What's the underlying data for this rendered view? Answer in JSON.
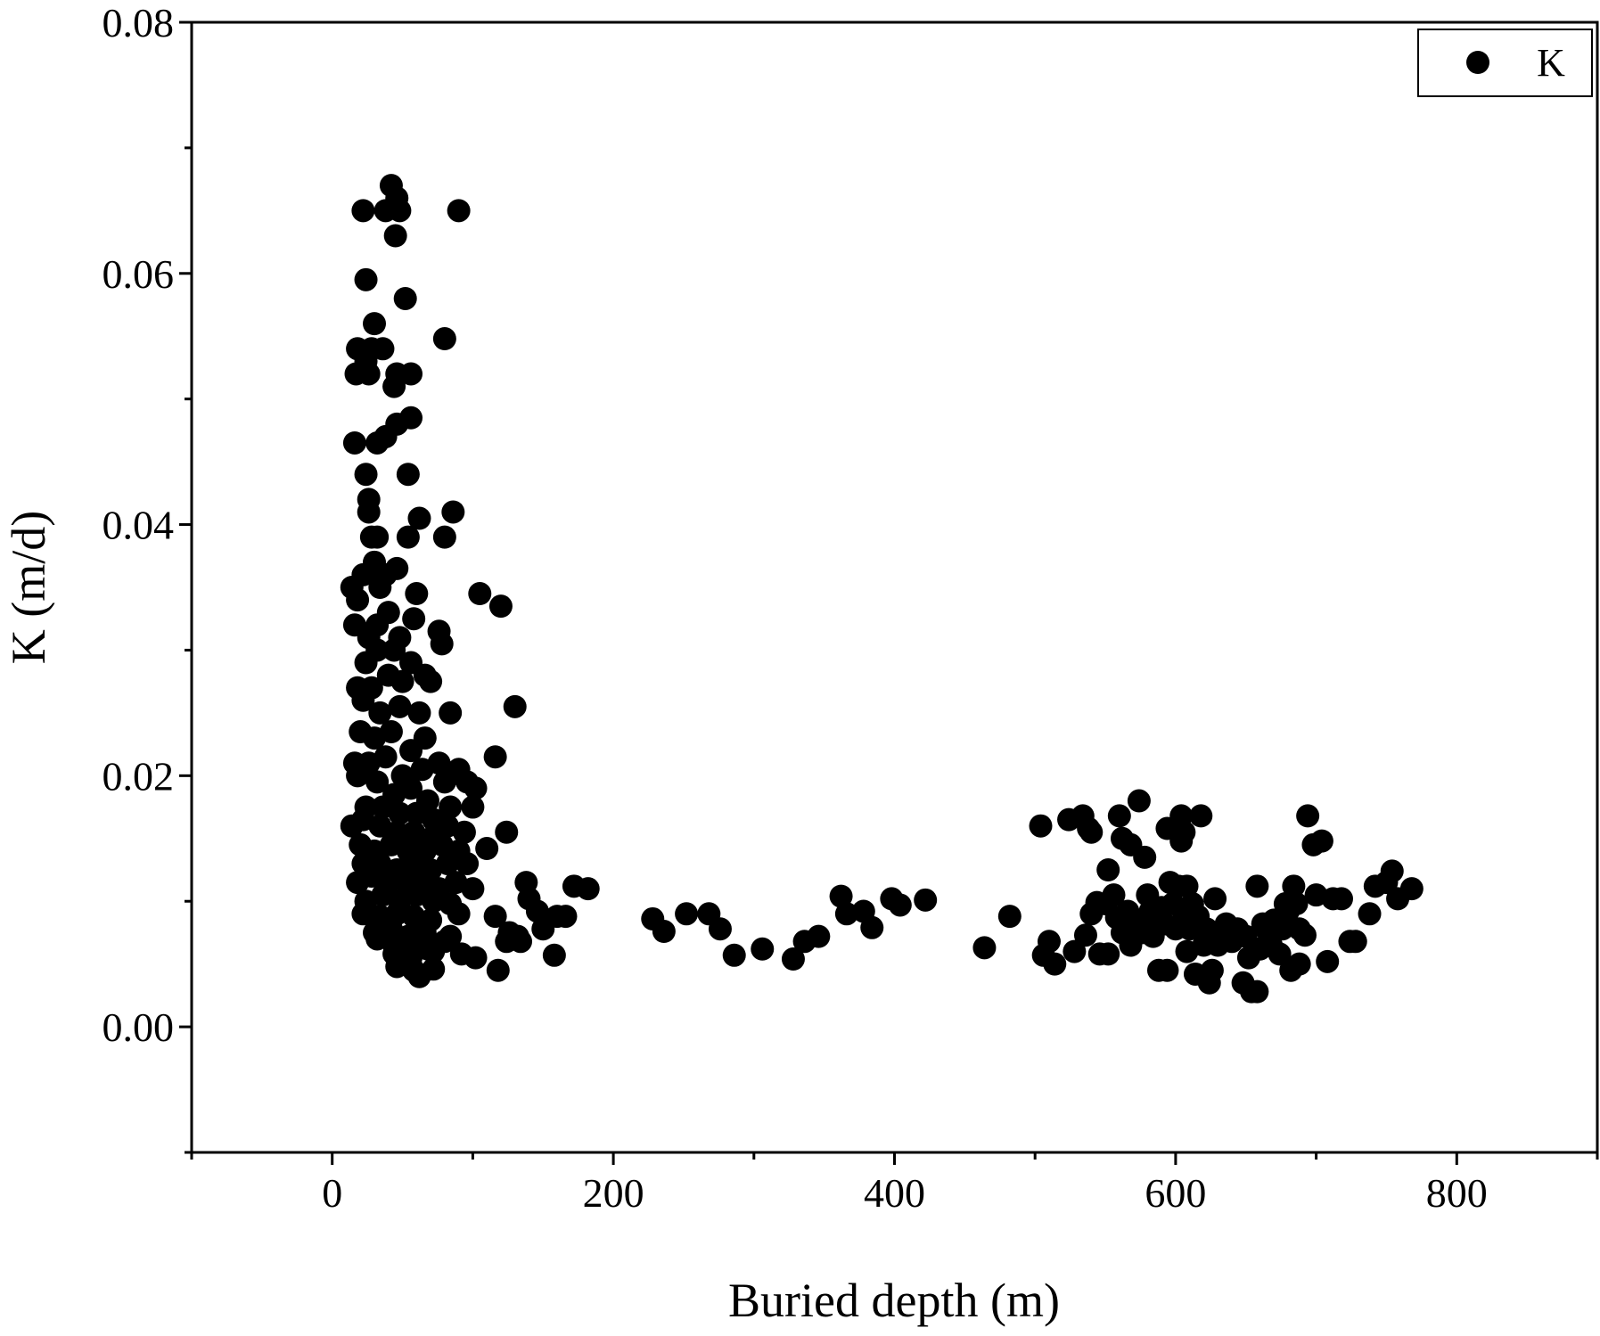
{
  "chart_data": {
    "type": "scatter",
    "title": "",
    "xlabel": "Buried depth (m)",
    "ylabel": "K (m/d)",
    "xlim": [
      -100,
      900
    ],
    "ylim": [
      -0.01,
      0.08
    ],
    "xticks": [
      0,
      200,
      400,
      600,
      800
    ],
    "xtick_labels": [
      "0",
      "200",
      "400",
      "600",
      "800"
    ],
    "yticks": [
      0.0,
      0.02,
      0.04,
      0.06,
      0.08
    ],
    "ytick_labels": [
      "0.00",
      "0.02",
      "0.04",
      "0.06",
      "0.08"
    ],
    "grid": false,
    "legend": {
      "position": "top-right",
      "entries": [
        "K"
      ]
    },
    "series": [
      {
        "name": "K",
        "color": "#000000",
        "marker": "circle",
        "points": [
          [
            22,
            0.065
          ],
          [
            38,
            0.065
          ],
          [
            48,
            0.065
          ],
          [
            90,
            0.065
          ],
          [
            42,
            0.067
          ],
          [
            46,
            0.066
          ],
          [
            45,
            0.063
          ],
          [
            24,
            0.0595
          ],
          [
            52,
            0.058
          ],
          [
            80,
            0.0548
          ],
          [
            30,
            0.056
          ],
          [
            28,
            0.054
          ],
          [
            18,
            0.054
          ],
          [
            24,
            0.053
          ],
          [
            36,
            0.054
          ],
          [
            17,
            0.052
          ],
          [
            26,
            0.052
          ],
          [
            46,
            0.052
          ],
          [
            56,
            0.052
          ],
          [
            44,
            0.051
          ],
          [
            56,
            0.0485
          ],
          [
            38,
            0.047
          ],
          [
            46,
            0.048
          ],
          [
            32,
            0.0465
          ],
          [
            16,
            0.0465
          ],
          [
            24,
            0.044
          ],
          [
            54,
            0.044
          ],
          [
            26,
            0.042
          ],
          [
            26,
            0.041
          ],
          [
            86,
            0.041
          ],
          [
            62,
            0.0405
          ],
          [
            28,
            0.039
          ],
          [
            32,
            0.039
          ],
          [
            54,
            0.039
          ],
          [
            80,
            0.039
          ],
          [
            14,
            0.035
          ],
          [
            22,
            0.036
          ],
          [
            30,
            0.037
          ],
          [
            38,
            0.036
          ],
          [
            46,
            0.0365
          ],
          [
            18,
            0.034
          ],
          [
            34,
            0.035
          ],
          [
            60,
            0.0345
          ],
          [
            105,
            0.0345
          ],
          [
            120,
            0.0335
          ],
          [
            16,
            0.032
          ],
          [
            26,
            0.031
          ],
          [
            32,
            0.032
          ],
          [
            40,
            0.033
          ],
          [
            48,
            0.031
          ],
          [
            58,
            0.0325
          ],
          [
            76,
            0.0315
          ],
          [
            24,
            0.029
          ],
          [
            32,
            0.03
          ],
          [
            44,
            0.03
          ],
          [
            56,
            0.029
          ],
          [
            66,
            0.028
          ],
          [
            78,
            0.0305
          ],
          [
            18,
            0.027
          ],
          [
            28,
            0.027
          ],
          [
            40,
            0.028
          ],
          [
            50,
            0.0275
          ],
          [
            70,
            0.0275
          ],
          [
            22,
            0.026
          ],
          [
            34,
            0.025
          ],
          [
            48,
            0.0255
          ],
          [
            62,
            0.025
          ],
          [
            84,
            0.025
          ],
          [
            130,
            0.0255
          ],
          [
            20,
            0.0235
          ],
          [
            30,
            0.023
          ],
          [
            42,
            0.0235
          ],
          [
            56,
            0.022
          ],
          [
            66,
            0.023
          ],
          [
            16,
            0.021
          ],
          [
            26,
            0.021
          ],
          [
            38,
            0.0215
          ],
          [
            50,
            0.02
          ],
          [
            64,
            0.0205
          ],
          [
            76,
            0.021
          ],
          [
            90,
            0.0205
          ],
          [
            116,
            0.0215
          ],
          [
            18,
            0.02
          ],
          [
            32,
            0.0195
          ],
          [
            44,
            0.0185
          ],
          [
            56,
            0.019
          ],
          [
            68,
            0.018
          ],
          [
            80,
            0.0195
          ],
          [
            96,
            0.0195
          ],
          [
            102,
            0.019
          ],
          [
            24,
            0.0175
          ],
          [
            36,
            0.0175
          ],
          [
            48,
            0.017
          ],
          [
            60,
            0.017
          ],
          [
            72,
            0.0165
          ],
          [
            84,
            0.0175
          ],
          [
            100,
            0.0175
          ],
          [
            14,
            0.016
          ],
          [
            22,
            0.0165
          ],
          [
            34,
            0.016
          ],
          [
            46,
            0.0155
          ],
          [
            58,
            0.0155
          ],
          [
            70,
            0.015
          ],
          [
            82,
            0.016
          ],
          [
            94,
            0.0155
          ],
          [
            124,
            0.0155
          ],
          [
            20,
            0.0145
          ],
          [
            30,
            0.014
          ],
          [
            42,
            0.0145
          ],
          [
            54,
            0.014
          ],
          [
            66,
            0.014
          ],
          [
            78,
            0.0145
          ],
          [
            90,
            0.014
          ],
          [
            110,
            0.0142
          ],
          [
            22,
            0.013
          ],
          [
            34,
            0.013
          ],
          [
            46,
            0.0125
          ],
          [
            58,
            0.013
          ],
          [
            70,
            0.0125
          ],
          [
            82,
            0.013
          ],
          [
            96,
            0.013
          ],
          [
            18,
            0.0115
          ],
          [
            28,
            0.012
          ],
          [
            40,
            0.0115
          ],
          [
            52,
            0.0115
          ],
          [
            64,
            0.0115
          ],
          [
            76,
            0.011
          ],
          [
            88,
            0.0115
          ],
          [
            100,
            0.011
          ],
          [
            138,
            0.0115
          ],
          [
            172,
            0.0112
          ],
          [
            182,
            0.011
          ],
          [
            24,
            0.01
          ],
          [
            36,
            0.0105
          ],
          [
            48,
            0.01
          ],
          [
            60,
            0.0105
          ],
          [
            72,
            0.01
          ],
          [
            84,
            0.0098
          ],
          [
            140,
            0.0102
          ],
          [
            22,
            0.009
          ],
          [
            34,
            0.0088
          ],
          [
            46,
            0.009
          ],
          [
            58,
            0.0088
          ],
          [
            70,
            0.0085
          ],
          [
            90,
            0.009
          ],
          [
            116,
            0.0088
          ],
          [
            146,
            0.0092
          ],
          [
            160,
            0.0088
          ],
          [
            166,
            0.0088
          ],
          [
            30,
            0.0075
          ],
          [
            42,
            0.0078
          ],
          [
            54,
            0.0072
          ],
          [
            66,
            0.0075
          ],
          [
            84,
            0.0072
          ],
          [
            126,
            0.0075
          ],
          [
            132,
            0.0072
          ],
          [
            150,
            0.0078
          ],
          [
            32,
            0.007
          ],
          [
            44,
            0.0065
          ],
          [
            56,
            0.0068
          ],
          [
            68,
            0.0062
          ],
          [
            80,
            0.0068
          ],
          [
            124,
            0.0068
          ],
          [
            134,
            0.0068
          ],
          [
            44,
            0.0058
          ],
          [
            56,
            0.0055
          ],
          [
            72,
            0.006
          ],
          [
            92,
            0.0058
          ],
          [
            102,
            0.0055
          ],
          [
            158,
            0.0057
          ],
          [
            46,
            0.0048
          ],
          [
            58,
            0.0045
          ],
          [
            72,
            0.0046
          ],
          [
            118,
            0.0045
          ],
          [
            62,
            0.004
          ],
          [
            228,
            0.0086
          ],
          [
            236,
            0.0076
          ],
          [
            252,
            0.009
          ],
          [
            268,
            0.009
          ],
          [
            276,
            0.0078
          ],
          [
            286,
            0.0057
          ],
          [
            306,
            0.0062
          ],
          [
            328,
            0.0054
          ],
          [
            336,
            0.0068
          ],
          [
            346,
            0.0072
          ],
          [
            362,
            0.0104
          ],
          [
            366,
            0.009
          ],
          [
            378,
            0.0092
          ],
          [
            384,
            0.0079
          ],
          [
            398,
            0.0102
          ],
          [
            404,
            0.0097
          ],
          [
            422,
            0.0101
          ],
          [
            464,
            0.0063
          ],
          [
            482,
            0.0088
          ],
          [
            504,
            0.016
          ],
          [
            506,
            0.0057
          ],
          [
            510,
            0.0068
          ],
          [
            514,
            0.005
          ],
          [
            524,
            0.0165
          ],
          [
            528,
            0.006
          ],
          [
            534,
            0.0168
          ],
          [
            536,
            0.0073
          ],
          [
            538,
            0.0158
          ],
          [
            540,
            0.0155
          ],
          [
            540,
            0.009
          ],
          [
            544,
            0.0099
          ],
          [
            546,
            0.0058
          ],
          [
            550,
            0.0098
          ],
          [
            552,
            0.0125
          ],
          [
            552,
            0.0058
          ],
          [
            556,
            0.0105
          ],
          [
            558,
            0.0087
          ],
          [
            560,
            0.0168
          ],
          [
            562,
            0.015
          ],
          [
            562,
            0.0075
          ],
          [
            566,
            0.0092
          ],
          [
            568,
            0.0145
          ],
          [
            568,
            0.0065
          ],
          [
            572,
            0.0085
          ],
          [
            574,
            0.018
          ],
          [
            576,
            0.0075
          ],
          [
            578,
            0.0135
          ],
          [
            580,
            0.0105
          ],
          [
            582,
            0.0092
          ],
          [
            584,
            0.0072
          ],
          [
            586,
            0.0088
          ],
          [
            588,
            0.0045
          ],
          [
            590,
            0.0095
          ],
          [
            592,
            0.0082
          ],
          [
            594,
            0.0158
          ],
          [
            594,
            0.0045
          ],
          [
            596,
            0.0115
          ],
          [
            598,
            0.0098
          ],
          [
            600,
            0.0078
          ],
          [
            602,
            0.0112
          ],
          [
            604,
            0.0168
          ],
          [
            604,
            0.0148
          ],
          [
            606,
            0.0088
          ],
          [
            606,
            0.0155
          ],
          [
            608,
            0.0112
          ],
          [
            608,
            0.006
          ],
          [
            610,
            0.0078
          ],
          [
            612,
            0.0098
          ],
          [
            614,
            0.0042
          ],
          [
            616,
            0.0088
          ],
          [
            618,
            0.0168
          ],
          [
            620,
            0.0065
          ],
          [
            622,
            0.0078
          ],
          [
            624,
            0.0035
          ],
          [
            626,
            0.0045
          ],
          [
            628,
            0.0102
          ],
          [
            630,
            0.0065
          ],
          [
            634,
            0.0072
          ],
          [
            636,
            0.0082
          ],
          [
            640,
            0.0068
          ],
          [
            644,
            0.0078
          ],
          [
            648,
            0.0035
          ],
          [
            650,
            0.0072
          ],
          [
            652,
            0.0055
          ],
          [
            654,
            0.0028
          ],
          [
            658,
            0.0112
          ],
          [
            658,
            0.0028
          ],
          [
            660,
            0.0062
          ],
          [
            662,
            0.0082
          ],
          [
            666,
            0.0075
          ],
          [
            668,
            0.0065
          ],
          [
            670,
            0.0085
          ],
          [
            674,
            0.0058
          ],
          [
            676,
            0.0078
          ],
          [
            678,
            0.0098
          ],
          [
            680,
            0.0092
          ],
          [
            682,
            0.0045
          ],
          [
            684,
            0.0112
          ],
          [
            686,
            0.0098
          ],
          [
            688,
            0.005
          ],
          [
            688,
            0.0078
          ],
          [
            692,
            0.0073
          ],
          [
            694,
            0.0168
          ],
          [
            698,
            0.0145
          ],
          [
            700,
            0.0105
          ],
          [
            704,
            0.0148
          ],
          [
            708,
            0.0052
          ],
          [
            712,
            0.0102
          ],
          [
            718,
            0.0102
          ],
          [
            724,
            0.0068
          ],
          [
            728,
            0.0068
          ],
          [
            738,
            0.009
          ],
          [
            742,
            0.0112
          ],
          [
            750,
            0.0115
          ],
          [
            754,
            0.0124
          ],
          [
            758,
            0.0102
          ],
          [
            768,
            0.011
          ]
        ]
      }
    ]
  }
}
